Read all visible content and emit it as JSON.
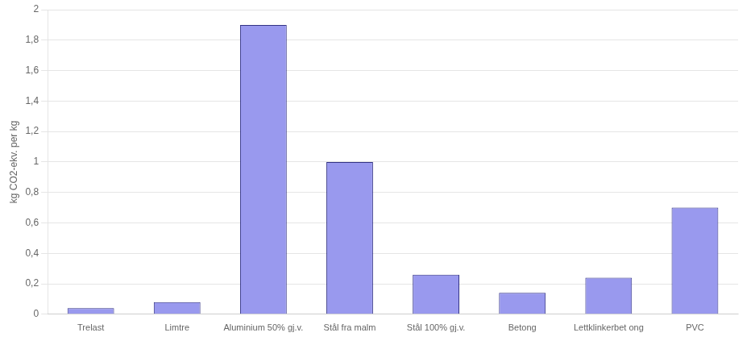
{
  "chart_data": {
    "type": "bar",
    "categories": [
      "Trelast",
      "Limtre",
      "Aluminium 50% gj.v.",
      "Stål fra malm",
      "Stål 100% gj.v.",
      "Betong",
      "Lettklinkerbet ong",
      "PVC"
    ],
    "values": [
      0.04,
      0.08,
      1.9,
      1.0,
      0.26,
      0.14,
      0.24,
      0.7
    ],
    "color": "#9999ee",
    "ylabel": "kg CO2-ekv. per kg",
    "ylim": [
      0,
      2.0
    ],
    "yticks": [
      0,
      {
        "value": 0.2,
        "label": "0,2"
      },
      {
        "value": 0.4,
        "label": "0,4"
      },
      {
        "value": 0.6,
        "label": "0,6"
      },
      {
        "value": 0.8,
        "label": "0,8"
      },
      1,
      {
        "value": 1.2,
        "label": "1,2"
      },
      {
        "value": 1.4,
        "label": "1,4"
      },
      {
        "value": 1.6,
        "label": "1,6"
      },
      {
        "value": 1.8,
        "label": "1,8"
      },
      2
    ],
    "grid": true
  }
}
